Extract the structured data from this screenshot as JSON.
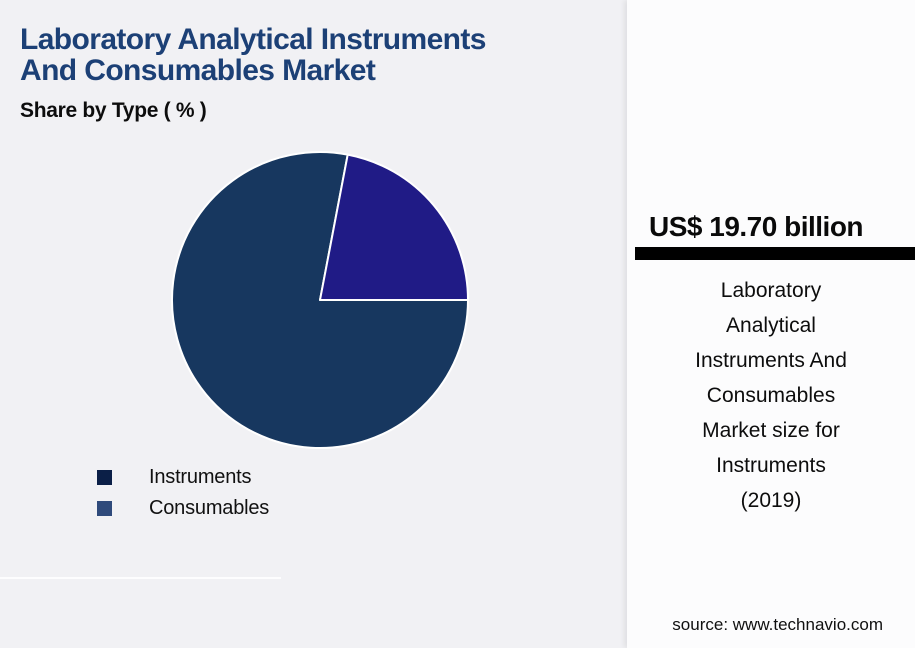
{
  "header": {
    "title_lines": [
      "Laboratory Analytical Instruments",
      "And Consumables Market"
    ],
    "subtitle": "Share by Type ( % )"
  },
  "chart_data": {
    "type": "pie",
    "title": "Laboratory Analytical Instruments And Consumables Market — Share by Type ( % )",
    "slices": [
      {
        "label": "Instruments",
        "value": 78,
        "color": "#17375F",
        "legend_color": "#0B1F47"
      },
      {
        "label": "Consumables",
        "value": 22,
        "color": "#201B86",
        "legend_color": "#2F4A7B"
      }
    ],
    "start_angle_deg": 90,
    "direction": "clockwise",
    "stroke": "#FFFFFF",
    "legend_position": "bottom-left",
    "data_labels": "none"
  },
  "callout": {
    "value": "US$ 19.70 billion",
    "description_lines": [
      "Laboratory",
      "Analytical",
      "Instruments And",
      "Consumables",
      "Market size for",
      "Instruments",
      "(2019)"
    ]
  },
  "footer": {
    "source": "source: www.technavio.com"
  },
  "colors": {
    "background_left": "#F1F1F4",
    "panel_background": "#FCFCFD",
    "title": "#1C4076",
    "bar": "#000000"
  }
}
